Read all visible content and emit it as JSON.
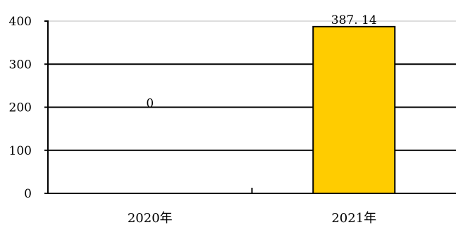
{
  "chart_data": {
    "type": "bar",
    "title": "",
    "xlabel": "",
    "ylabel": "",
    "categories": [
      "2020年",
      "2021年"
    ],
    "values": [
      0,
      387.14
    ],
    "data_labels": [
      "0",
      "387. 14"
    ],
    "ylim": [
      0,
      400
    ],
    "yticks": [
      0,
      100,
      200,
      300,
      400
    ],
    "grid": true,
    "legend": "none",
    "colors": {
      "bar_fill": "#FFCC00",
      "bar_stroke": "#000000",
      "gridline": "#000000",
      "axis": "#000000"
    }
  }
}
